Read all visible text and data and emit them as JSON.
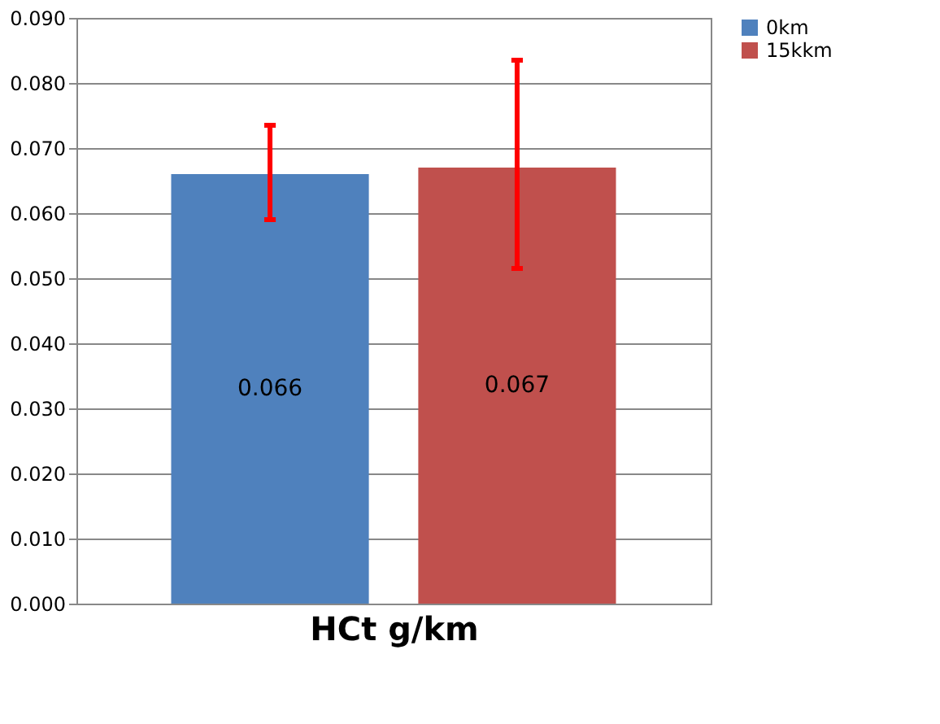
{
  "chart_data": {
    "type": "bar",
    "xlabel": "HCt g/km",
    "categories": [
      null
    ],
    "series": [
      {
        "name": "0km",
        "color": "#4f81bd",
        "values": [
          0.066
        ],
        "errors": [
          [
            0.059,
            0.0735
          ]
        ]
      },
      {
        "name": "15kkm",
        "color": "#c0504d",
        "values": [
          0.067
        ],
        "errors": [
          [
            0.0515,
            0.0835
          ]
        ]
      }
    ],
    "ylim": [
      0,
      0.09
    ],
    "yticks": [
      {
        "value": 0,
        "label": "0.000"
      },
      {
        "value": 0.01,
        "label": "0.010"
      },
      {
        "value": 0.02,
        "label": "0.020"
      },
      {
        "value": 0.03,
        "label": "0.030"
      },
      {
        "value": 0.04,
        "label": "0.040"
      },
      {
        "value": 0.05,
        "label": "0.050"
      },
      {
        "value": 0.06,
        "label": "0.060"
      },
      {
        "value": 0.07,
        "label": "0.070"
      },
      {
        "value": 0.08,
        "label": "0.080"
      },
      {
        "value": 0.09,
        "label": "0.090"
      }
    ],
    "grid": "y",
    "legend": "right",
    "data_labels": true
  }
}
